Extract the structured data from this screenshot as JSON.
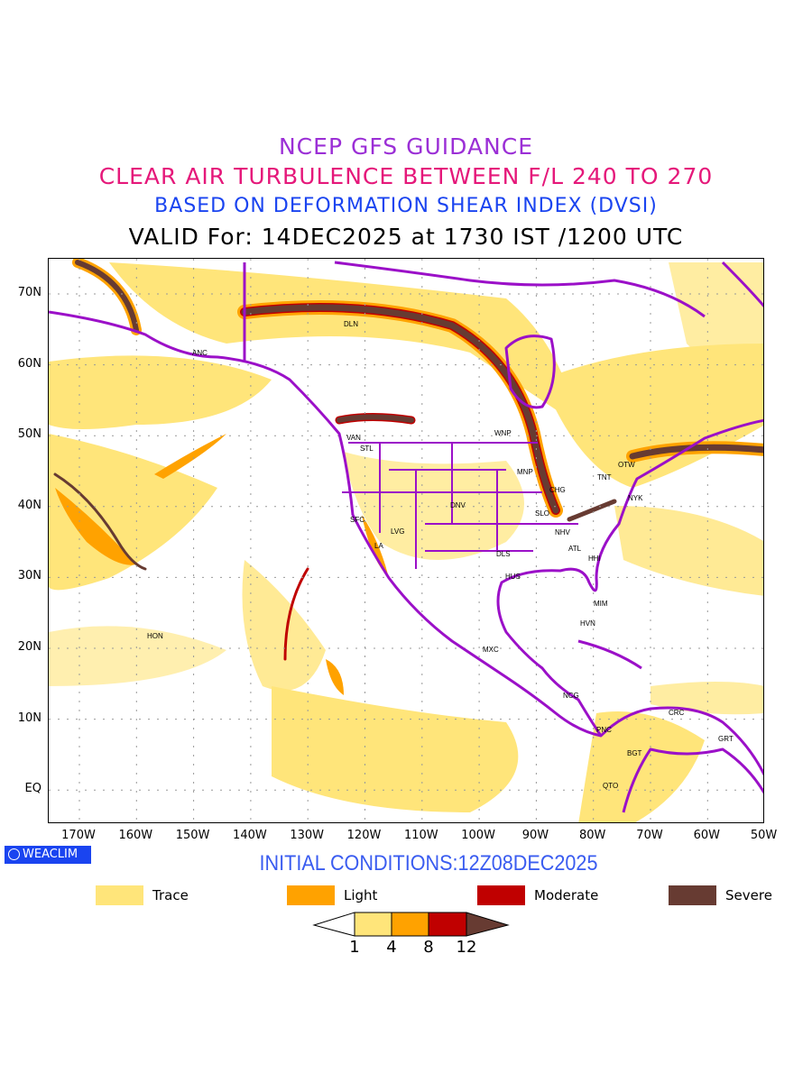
{
  "titles": {
    "line1": "NCEP GFS GUIDANCE",
    "line2": "CLEAR AIR TURBULENCE BETWEEN F/L 240 TO 270",
    "line3": "BASED ON DEFORMATION SHEAR INDEX (DVSI)",
    "line4": "VALID For: 14DEC2025 at 1730 IST /1200 UTC"
  },
  "axes": {
    "lat_labels": [
      "70N",
      "60N",
      "50N",
      "40N",
      "30N",
      "20N",
      "10N",
      "EQ"
    ],
    "lon_labels": [
      "170W",
      "160W",
      "150W",
      "140W",
      "130W",
      "120W",
      "110W",
      "100W",
      "90W",
      "80W",
      "70W",
      "60W",
      "50W"
    ]
  },
  "cities": [
    "DLN",
    "ANC",
    "VAN",
    "STL",
    "WNP",
    "MNP",
    "OTW",
    "TNT",
    "CHG",
    "NYK",
    "DNV",
    "SFC",
    "LVG",
    "LA",
    "SLO",
    "NHV",
    "ATL",
    "HHI",
    "DLS",
    "HUS",
    "MIM",
    "HVN",
    "HON",
    "MXC",
    "NCG",
    "CRC",
    "PNC",
    "GRT",
    "BGT",
    "QTO"
  ],
  "logo": "WEACLIM",
  "initial_conditions": "INITIAL CONDITIONS:12Z08DEC2025",
  "legend": [
    {
      "label": "Trace",
      "color": "#ffe57a"
    },
    {
      "label": "Light",
      "color": "#ffa200"
    },
    {
      "label": "Moderate",
      "color": "#c00000"
    },
    {
      "label": "Severe",
      "color": "#673b32"
    }
  ],
  "colorbar": {
    "ticks": [
      "1",
      "4",
      "8",
      "12"
    ]
  },
  "colors": {
    "coast": "#9b10c8",
    "trace": "#ffe57a",
    "light": "#ffa200",
    "moderate": "#c00000",
    "severe": "#673b32"
  }
}
